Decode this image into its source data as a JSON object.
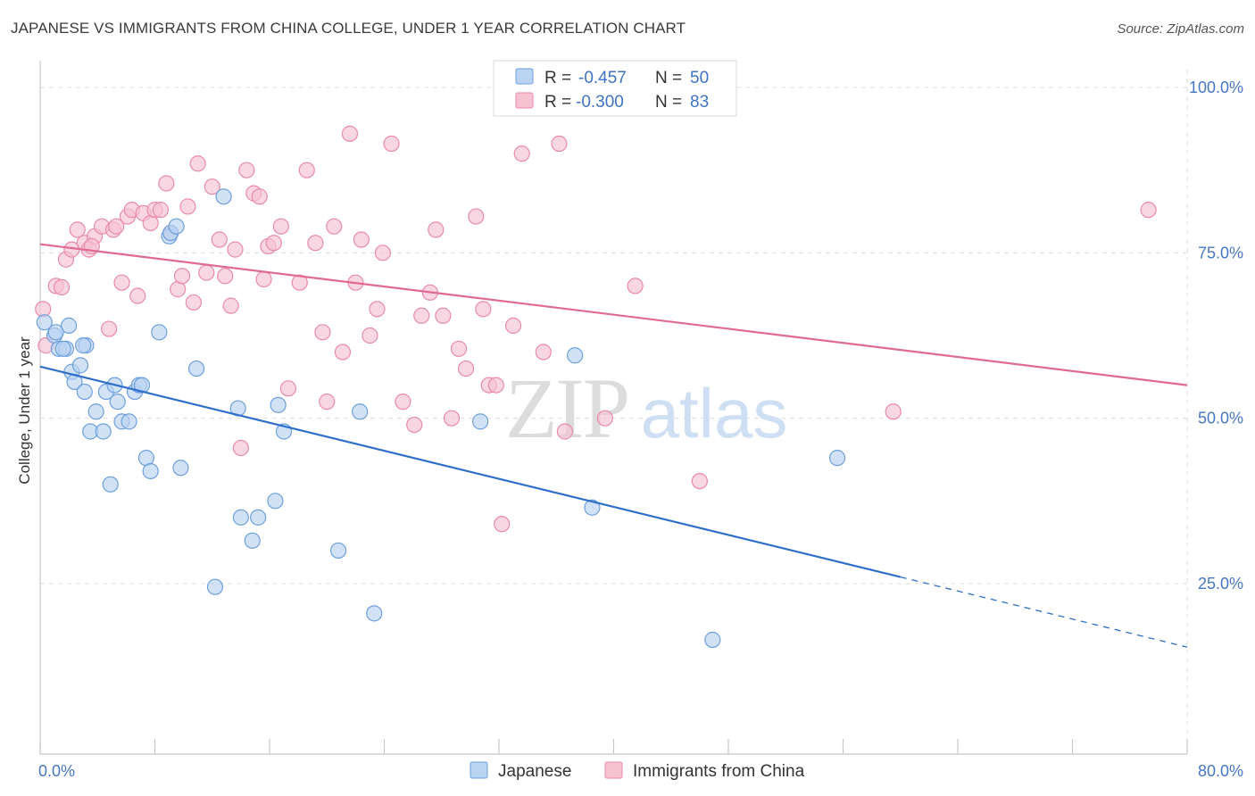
{
  "title": "JAPANESE VS IMMIGRANTS FROM CHINA COLLEGE, UNDER 1 YEAR CORRELATION CHART",
  "source": "Source: ZipAtlas.com",
  "watermark": {
    "part1": "ZIP",
    "part2": "atlas"
  },
  "colors": {
    "japanese_fill": "#b9d3f3",
    "japanese_stroke": "#6d9fdc",
    "japanese_line": "#2f6fcc",
    "china_fill": "#f6c2d2",
    "china_stroke": "#e98aaa",
    "china_line": "#e06a93",
    "axis_label": "#4677c4",
    "grid": "#dedede"
  },
  "stats": [
    {
      "r_label": "R =",
      "r_value": "-0.457",
      "n_label": "N =",
      "n_value": "50"
    },
    {
      "r_label": "R =",
      "r_value": "-0.300",
      "n_label": "N =",
      "n_value": "83"
    }
  ],
  "chart_data": {
    "type": "scatter",
    "title": "JAPANESE VS IMMIGRANTS FROM CHINA COLLEGE, UNDER 1 YEAR CORRELATION CHART",
    "xlabel": "",
    "ylabel": "College, Under 1 year",
    "xlim": [
      0,
      80
    ],
    "ylim": [
      0,
      105
    ],
    "x_tick_labels": [
      "0.0%",
      "80.0%"
    ],
    "y_tick_labels": [
      "25.0%",
      "50.0%",
      "75.0%",
      "100.0%"
    ],
    "y_ticks": [
      25,
      50,
      75,
      100
    ],
    "grid": true,
    "legend_position": "bottom",
    "series": [
      {
        "name": "Japanese",
        "points": [
          [
            0.3,
            64.5
          ],
          [
            1.0,
            62.5
          ],
          [
            1.1,
            63.0
          ],
          [
            1.3,
            60.5
          ],
          [
            1.8,
            60.5
          ],
          [
            2.2,
            57.0
          ],
          [
            2.4,
            55.5
          ],
          [
            2.8,
            58.0
          ],
          [
            3.1,
            54.0
          ],
          [
            3.2,
            61.0
          ],
          [
            3.5,
            48.0
          ],
          [
            3.9,
            51.0
          ],
          [
            4.4,
            48.0
          ],
          [
            4.6,
            54.0
          ],
          [
            4.9,
            40.0
          ],
          [
            5.2,
            55.0
          ],
          [
            5.4,
            52.5
          ],
          [
            5.7,
            49.5
          ],
          [
            6.2,
            49.5
          ],
          [
            6.6,
            54.0
          ],
          [
            6.9,
            55.0
          ],
          [
            7.1,
            55.0
          ],
          [
            7.4,
            44.0
          ],
          [
            7.7,
            42.0
          ],
          [
            8.3,
            63.0
          ],
          [
            9.0,
            77.5
          ],
          [
            9.1,
            78.0
          ],
          [
            9.5,
            79.0
          ],
          [
            9.8,
            42.5
          ],
          [
            10.9,
            57.5
          ],
          [
            12.2,
            24.5
          ],
          [
            12.8,
            83.5
          ],
          [
            13.8,
            51.5
          ],
          [
            14.0,
            35.0
          ],
          [
            14.8,
            31.5
          ],
          [
            15.2,
            35.0
          ],
          [
            16.4,
            37.5
          ],
          [
            16.6,
            52.0
          ],
          [
            17.0,
            48.0
          ],
          [
            20.8,
            30.0
          ],
          [
            22.3,
            51.0
          ],
          [
            23.3,
            20.5
          ],
          [
            30.7,
            49.5
          ],
          [
            37.3,
            59.5
          ],
          [
            38.5,
            36.5
          ],
          [
            46.9,
            16.5
          ],
          [
            55.6,
            44.0
          ],
          [
            3.0,
            61.0
          ],
          [
            2.0,
            64.0
          ],
          [
            1.6,
            60.5
          ]
        ],
        "trend": {
          "x0": 0,
          "y0": 57.8,
          "x1": 60,
          "y1": 26.0,
          "dash_x1": 80,
          "dash_y1": 15.4
        }
      },
      {
        "name": "Immigrants from China",
        "points": [
          [
            0.2,
            66.5
          ],
          [
            0.4,
            61.0
          ],
          [
            1.1,
            70.0
          ],
          [
            1.5,
            69.8
          ],
          [
            1.8,
            74.0
          ],
          [
            2.2,
            75.5
          ],
          [
            2.6,
            78.5
          ],
          [
            3.1,
            76.5
          ],
          [
            3.4,
            75.5
          ],
          [
            3.8,
            77.5
          ],
          [
            4.3,
            79.0
          ],
          [
            4.8,
            63.5
          ],
          [
            5.1,
            78.5
          ],
          [
            5.3,
            79.0
          ],
          [
            5.7,
            70.5
          ],
          [
            6.1,
            80.5
          ],
          [
            6.4,
            81.5
          ],
          [
            6.8,
            68.5
          ],
          [
            7.2,
            81.0
          ],
          [
            7.7,
            79.5
          ],
          [
            8.0,
            81.5
          ],
          [
            8.4,
            81.5
          ],
          [
            8.8,
            85.5
          ],
          [
            9.1,
            78.0
          ],
          [
            9.6,
            69.5
          ],
          [
            9.9,
            71.5
          ],
          [
            10.3,
            82.0
          ],
          [
            10.7,
            67.5
          ],
          [
            11.0,
            88.5
          ],
          [
            11.6,
            72.0
          ],
          [
            12.0,
            85.0
          ],
          [
            12.5,
            77.0
          ],
          [
            12.9,
            71.5
          ],
          [
            13.3,
            67.0
          ],
          [
            13.6,
            75.5
          ],
          [
            14.0,
            45.5
          ],
          [
            14.4,
            87.5
          ],
          [
            14.9,
            84.0
          ],
          [
            15.3,
            83.5
          ],
          [
            15.6,
            71.0
          ],
          [
            15.9,
            76.0
          ],
          [
            16.3,
            76.5
          ],
          [
            16.8,
            79.0
          ],
          [
            17.3,
            54.5
          ],
          [
            18.1,
            70.5
          ],
          [
            18.6,
            87.5
          ],
          [
            19.2,
            76.5
          ],
          [
            19.7,
            63.0
          ],
          [
            20.0,
            52.5
          ],
          [
            20.5,
            79.0
          ],
          [
            21.1,
            60.0
          ],
          [
            21.6,
            93.0
          ],
          [
            22.0,
            70.5
          ],
          [
            22.4,
            77.0
          ],
          [
            23.0,
            62.5
          ],
          [
            23.5,
            66.5
          ],
          [
            23.9,
            75.0
          ],
          [
            24.5,
            91.5
          ],
          [
            25.3,
            52.5
          ],
          [
            26.1,
            49.0
          ],
          [
            26.6,
            65.5
          ],
          [
            27.2,
            69.0
          ],
          [
            27.6,
            78.5
          ],
          [
            28.1,
            65.5
          ],
          [
            28.7,
            50.0
          ],
          [
            29.2,
            60.5
          ],
          [
            29.7,
            57.5
          ],
          [
            30.4,
            80.5
          ],
          [
            30.9,
            66.5
          ],
          [
            31.3,
            55.0
          ],
          [
            31.8,
            55.0
          ],
          [
            32.2,
            34.0
          ],
          [
            33.0,
            64.0
          ],
          [
            33.6,
            90.0
          ],
          [
            35.1,
            60.0
          ],
          [
            36.2,
            91.5
          ],
          [
            36.6,
            48.0
          ],
          [
            39.4,
            50.0
          ],
          [
            41.5,
            70.0
          ],
          [
            46.0,
            40.5
          ],
          [
            59.5,
            51.0
          ],
          [
            77.3,
            81.5
          ],
          [
            3.6,
            76.0
          ]
        ],
        "trend": {
          "x0": 0,
          "y0": 76.3,
          "x1": 80,
          "y1": 55.0
        }
      }
    ]
  }
}
